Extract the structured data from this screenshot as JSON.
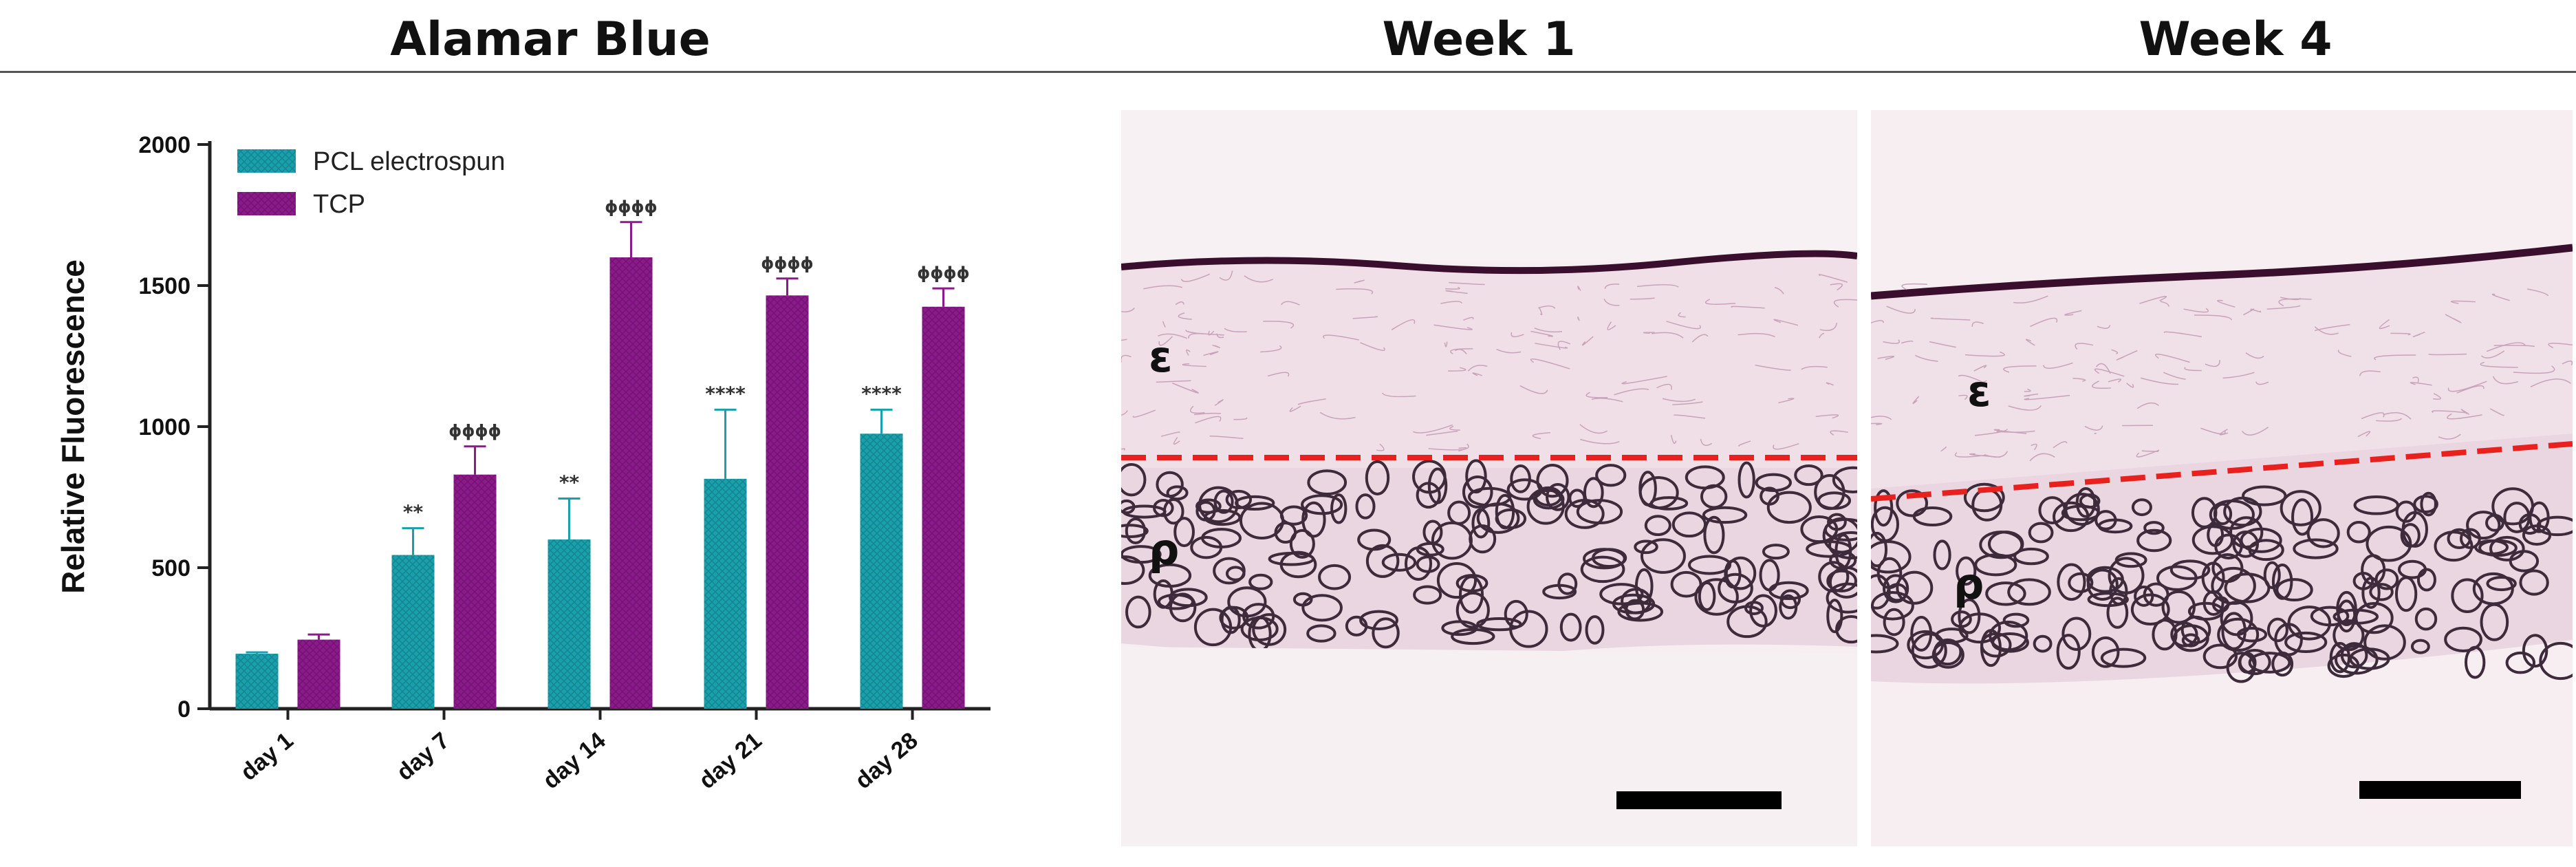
{
  "headers": {
    "alamar": "Alamar Blue",
    "week1": "Week 1",
    "week4": "Week 4"
  },
  "chart_data": {
    "type": "bar",
    "ylabel": "Relative Fluorescence",
    "ylim": [
      0,
      2000
    ],
    "yticks": [
      "0",
      "500",
      "1000",
      "1500",
      "2000"
    ],
    "ytick_values": [
      0,
      500,
      1000,
      1500,
      2000
    ],
    "categories": [
      "day 1",
      "day 7",
      "day 14",
      "day 21",
      "day 28"
    ],
    "legend_position": "top-left",
    "series": [
      {
        "name": "PCL electrospun",
        "color": "#1aa0ac",
        "values": [
          195,
          545,
          600,
          815,
          975
        ],
        "errors": [
          5,
          95,
          145,
          245,
          85
        ],
        "annotations": [
          "",
          "**",
          "**",
          "****",
          "****"
        ]
      },
      {
        "name": "TCP",
        "color": "#8b1a8a",
        "values": [
          245,
          830,
          1600,
          1465,
          1425
        ],
        "errors": [
          18,
          100,
          125,
          60,
          65
        ],
        "annotations": [
          "",
          "ɸɸɸɸ",
          "ɸɸɸɸ",
          "ɸɸɸɸ",
          "ɸɸɸɸ"
        ]
      }
    ]
  },
  "panels": {
    "week1": {
      "labels": [
        "ε",
        "ρ"
      ]
    },
    "week4": {
      "labels": [
        "ε",
        "ρ"
      ]
    }
  }
}
